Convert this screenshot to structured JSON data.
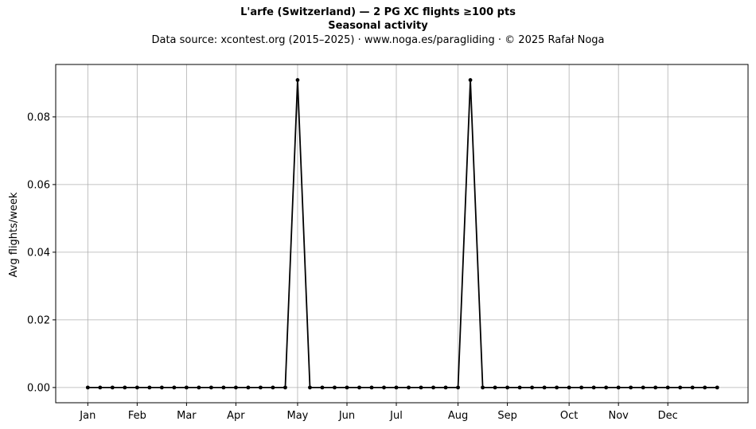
{
  "chart_data": {
    "type": "line",
    "title": "L'arfe (Switzerland)  —  2 PG XC flights ≥100 pts",
    "subtitle": "Seasonal activity",
    "source": "Data source: xcontest.org (2015–2025)  ·  www.noga.es/paragliding  ·  © 2025 Rafał Noga",
    "ylabel": "Avg flights/week",
    "xlabel": "",
    "x_tick_labels": [
      "Jan",
      "Feb",
      "Mar",
      "Apr",
      "May",
      "Jun",
      "Jul",
      "Aug",
      "Sep",
      "Oct",
      "Nov",
      "Dec"
    ],
    "x_tick_weeks": [
      1,
      5,
      9,
      13,
      18,
      22,
      26,
      31,
      35,
      40,
      44,
      48
    ],
    "y_ticks": [
      0.0,
      0.02,
      0.04,
      0.06,
      0.08
    ],
    "y_tick_labels": [
      "0.00",
      "0.02",
      "0.04",
      "0.06",
      "0.08"
    ],
    "xlim": [
      -1.6,
      54.5
    ],
    "ylim": [
      -0.0045,
      0.0955
    ],
    "grid": true,
    "line_color": "#000000",
    "grid_color": "#b0b0b0",
    "x": [
      1,
      2,
      3,
      4,
      5,
      6,
      7,
      8,
      9,
      10,
      11,
      12,
      13,
      14,
      15,
      16,
      17,
      18,
      19,
      20,
      21,
      22,
      23,
      24,
      25,
      26,
      27,
      28,
      29,
      30,
      31,
      32,
      33,
      34,
      35,
      36,
      37,
      38,
      39,
      40,
      41,
      42,
      43,
      44,
      45,
      46,
      47,
      48,
      49,
      50,
      51,
      52
    ],
    "values": [
      0,
      0,
      0,
      0,
      0,
      0,
      0,
      0,
      0,
      0,
      0,
      0,
      0,
      0,
      0,
      0,
      0,
      0.0909,
      0,
      0,
      0,
      0,
      0,
      0,
      0,
      0,
      0,
      0,
      0,
      0,
      0,
      0.0909,
      0,
      0,
      0,
      0,
      0,
      0,
      0,
      0,
      0,
      0,
      0,
      0,
      0,
      0,
      0,
      0,
      0,
      0,
      0,
      0
    ]
  }
}
